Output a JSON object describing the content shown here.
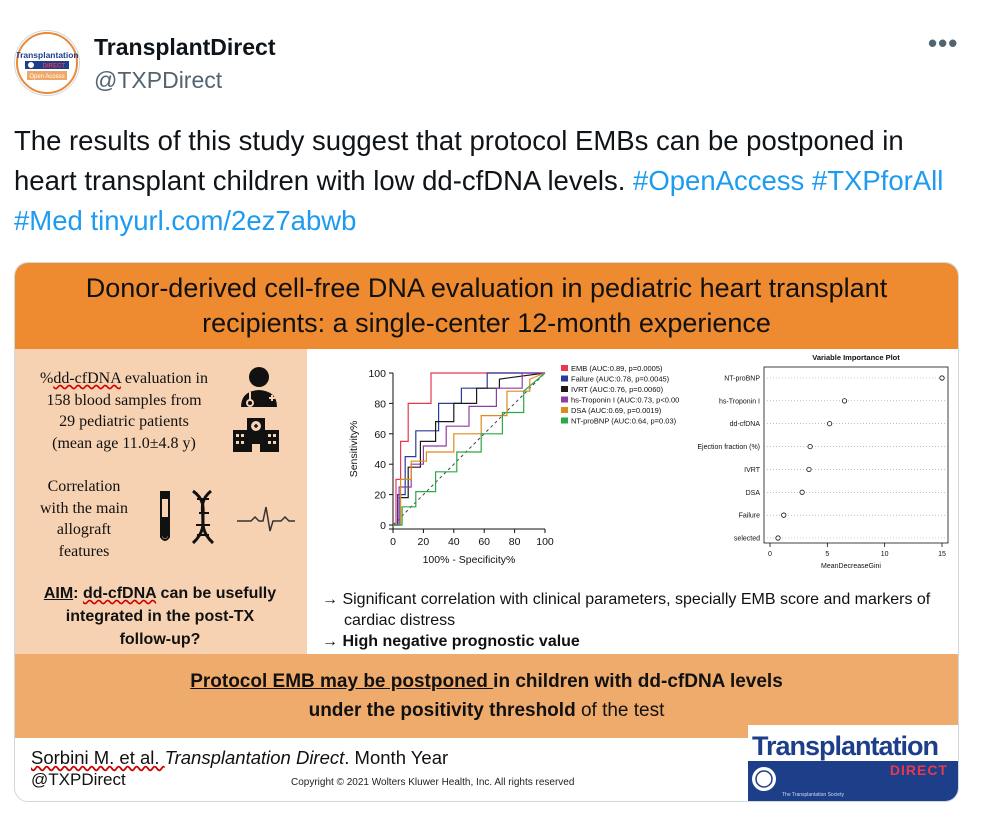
{
  "tweet": {
    "display_name": "TransplantDirect",
    "handle": "@TXPDirect",
    "more_label": "•••",
    "avatar": {
      "line1": "Transplantation",
      "line2": "DIRECT",
      "line3": "Open Access"
    },
    "text_plain": "The results of this study suggest that protocol EMBs can be postponed in heart transplant children with low dd-cfDNA levels.",
    "hashtag_openaccess": "#OpenAccess",
    "hashtag_txpforall": "#TXPforAll",
    "hashtag_med": "#Med",
    "url": "tinyurl.com/2ez7abwb"
  },
  "infographic": {
    "title_line1": "Donor-derived cell-free DNA evaluation in pediatric heart transplant",
    "title_line2": "recipients: a single-center 12-month experience",
    "left": {
      "line1_pre": "%",
      "line1_term": "dd-cfDNA",
      "line1_post": " evaluation in",
      "line2": "158 blood samples from",
      "line3": "29 pediatric patients",
      "line4": "(mean age 11.0±4.8 y)",
      "corr1": "Correlation",
      "corr2": "with the main",
      "corr3": "allograft",
      "corr4": "features",
      "aim_label": "AIM",
      "aim_colon": ": ",
      "aim_term": "dd-cfDNA",
      "aim_rest1": " can be usefully",
      "aim_rest2": "integrated in the post-TX",
      "aim_rest3": "follow-up?"
    },
    "findings": {
      "bullet1_line1": "→ Significant correlation with clinical parameters, specially EMB score and markers of",
      "bullet1_line2": "cardiac distress",
      "bullet2_arrow": "→ ",
      "bullet2": "High negative prognostic value"
    },
    "conclusion": {
      "part1": "Protocol EMB may be postponed ",
      "part2": "in children with dd-cfDNA levels",
      "part3": "under the positivity threshold",
      "part4": " of the test"
    },
    "footer": {
      "authors": "Sorbini M. et al. ",
      "journal": "Transplantation Direct",
      "date": ". Month Year",
      "handle": "@TXPDirect",
      "copyright": "Copyright © 2021  Wolters Kluwer Health, Inc. All rights reserved"
    },
    "logo": {
      "line1": "Transplantation",
      "line2": "DIRECT",
      "line3": "The Transplantation Society"
    }
  },
  "chart_data": [
    {
      "type": "line",
      "title": "",
      "xlabel": "100% - Specificity%",
      "ylabel": "Sensitivity%",
      "xlim": [
        0,
        100
      ],
      "ylim": [
        0,
        100
      ],
      "xticks": [
        "0",
        "20",
        "40",
        "60",
        "80",
        "100"
      ],
      "yticks": [
        "0",
        "20",
        "40",
        "60",
        "80",
        "100"
      ],
      "legend_position": "right",
      "reference_line": "diagonal dashed",
      "series": [
        {
          "name": "EMB (AUC:0.89, p=0.0005)",
          "color": "#e8384f",
          "points": [
            [
              0,
              0
            ],
            [
              2,
              0
            ],
            [
              2,
              30
            ],
            [
              5,
              30
            ],
            [
              5,
              55
            ],
            [
              10,
              55
            ],
            [
              10,
              80
            ],
            [
              25,
              80
            ],
            [
              25,
              100
            ],
            [
              100,
              100
            ]
          ]
        },
        {
          "name": "Failure (AUC:0.78, p=0.0045)",
          "color": "#2b3b9c",
          "points": [
            [
              0,
              0
            ],
            [
              3,
              0
            ],
            [
              3,
              20
            ],
            [
              8,
              20
            ],
            [
              8,
              45
            ],
            [
              15,
              45
            ],
            [
              15,
              62
            ],
            [
              30,
              62
            ],
            [
              30,
              80
            ],
            [
              45,
              80
            ],
            [
              45,
              90
            ],
            [
              62,
              90
            ],
            [
              62,
              100
            ],
            [
              100,
              100
            ]
          ]
        },
        {
          "name": "IVRT (AUC:0.76, p=0.0060)",
          "color": "#1a1a1a",
          "points": [
            [
              0,
              0
            ],
            [
              4,
              0
            ],
            [
              4,
              18
            ],
            [
              10,
              18
            ],
            [
              10,
              38
            ],
            [
              18,
              38
            ],
            [
              18,
              55
            ],
            [
              28,
              55
            ],
            [
              28,
              68
            ],
            [
              40,
              68
            ],
            [
              40,
              80
            ],
            [
              55,
              80
            ],
            [
              55,
              90
            ],
            [
              70,
              90
            ],
            [
              70,
              96
            ],
            [
              100,
              100
            ]
          ]
        },
        {
          "name": "hs-Troponin I (AUC:0.73, p<0.00",
          "color": "#8e3fa6",
          "points": [
            [
              0,
              0
            ],
            [
              4,
              0
            ],
            [
              4,
              25
            ],
            [
              12,
              25
            ],
            [
              12,
              40
            ],
            [
              20,
              40
            ],
            [
              20,
              52
            ],
            [
              35,
              52
            ],
            [
              35,
              65
            ],
            [
              50,
              65
            ],
            [
              50,
              78
            ],
            [
              68,
              78
            ],
            [
              68,
              90
            ],
            [
              85,
              90
            ],
            [
              85,
              100
            ],
            [
              100,
              100
            ]
          ]
        },
        {
          "name": "DSA (AUC:0.69, p=0.0019)",
          "color": "#e08a1e",
          "points": [
            [
              0,
              0
            ],
            [
              5,
              0
            ],
            [
              5,
              30
            ],
            [
              12,
              30
            ],
            [
              12,
              42
            ],
            [
              22,
              42
            ],
            [
              22,
              48
            ],
            [
              40,
              48
            ],
            [
              40,
              60
            ],
            [
              58,
              60
            ],
            [
              58,
              72
            ],
            [
              75,
              72
            ],
            [
              75,
              88
            ],
            [
              90,
              88
            ],
            [
              90,
              96
            ],
            [
              100,
              100
            ]
          ]
        },
        {
          "name": "NT-proBNP (AUC:0.64, p=0.03)",
          "color": "#2aa84a",
          "points": [
            [
              0,
              0
            ],
            [
              6,
              0
            ],
            [
              6,
              12
            ],
            [
              15,
              12
            ],
            [
              15,
              22
            ],
            [
              28,
              22
            ],
            [
              28,
              35
            ],
            [
              42,
              35
            ],
            [
              42,
              48
            ],
            [
              58,
              48
            ],
            [
              58,
              60
            ],
            [
              72,
              60
            ],
            [
              72,
              74
            ],
            [
              86,
              74
            ],
            [
              86,
              88
            ],
            [
              100,
              100
            ]
          ]
        }
      ]
    },
    {
      "type": "scatter",
      "title": "Variable Importance Plot",
      "xlabel": "MeanDecreaseGini",
      "ylabel": "",
      "xlim": [
        0,
        15
      ],
      "xticks": [
        "0",
        "5",
        "10",
        "15"
      ],
      "categories": [
        "NT-proBNP",
        "hs-Troponin I",
        "dd-cfDNA",
        "Ejection fraction (%)",
        "IVRT",
        "DSA",
        "Failure",
        "selected"
      ],
      "values": [
        15.0,
        6.5,
        5.2,
        3.5,
        3.4,
        2.8,
        1.2,
        0.7
      ]
    }
  ]
}
